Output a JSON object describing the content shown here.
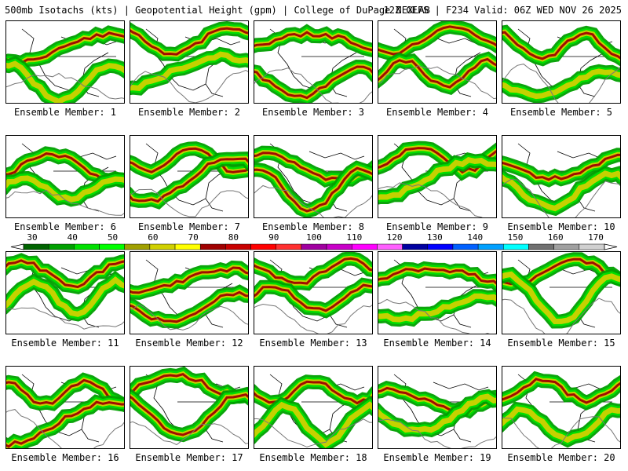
{
  "header": {
    "left_title": "500mb Isotachs (kts) | Geopotential Height (gpm) | College of DuPage NEXLAB",
    "right_title": "12Z GEFS | F234 Valid: 06Z WED NOV 26 2025"
  },
  "members": [
    "Ensemble Member: 1",
    "Ensemble Member: 2",
    "Ensemble Member: 3",
    "Ensemble Member: 4",
    "Ensemble Member: 5",
    "Ensemble Member: 6",
    "Ensemble Member: 7",
    "Ensemble Member: 8",
    "Ensemble Member: 9",
    "Ensemble Member: 10",
    "Ensemble Member: 11",
    "Ensemble Member: 12",
    "Ensemble Member: 13",
    "Ensemble Member: 14",
    "Ensemble Member: 15",
    "Ensemble Member: 16",
    "Ensemble Member: 17",
    "Ensemble Member: 18",
    "Ensemble Member: 19",
    "Ensemble Member: 20"
  ],
  "colorbar": {
    "labels": [
      "30",
      "40",
      "50",
      "60",
      "70",
      "80",
      "90",
      "100",
      "110",
      "120",
      "130",
      "140",
      "150",
      "160",
      "170"
    ],
    "colors": [
      "#006400",
      "#00a000",
      "#00e000",
      "#00ff00",
      "#a0a000",
      "#d0d000",
      "#ffff00",
      "#a00000",
      "#c80000",
      "#ff0000",
      "#ff3030",
      "#a000a0",
      "#c800c8",
      "#ff00ff",
      "#ff60ff",
      "#0000a0",
      "#0000ff",
      "#0060ff",
      "#00a0ff",
      "#00ffff",
      "#707070",
      "#a0a0a0",
      "#d0d0d0"
    ]
  }
}
